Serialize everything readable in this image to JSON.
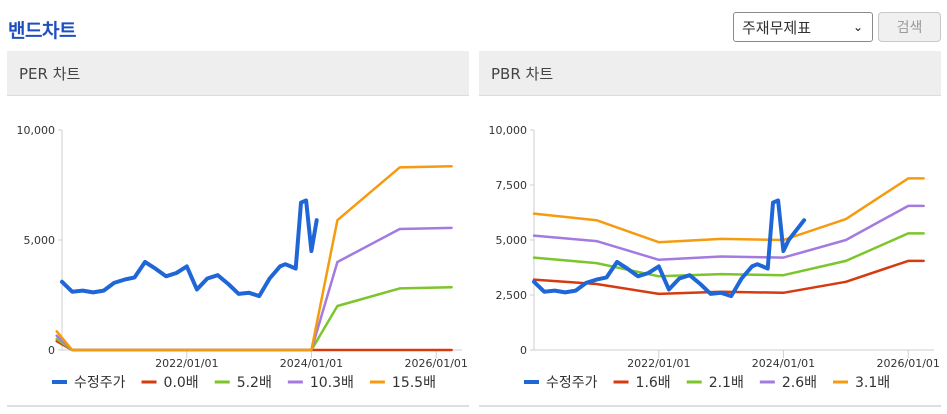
{
  "page": {
    "title": "밴드차트"
  },
  "controls": {
    "select_value": "주재무제표",
    "search_label": "검색"
  },
  "chart_data": [
    {
      "type": "line",
      "title": "PER 차트",
      "ylim": [
        0,
        10000
      ],
      "yticks": [
        0,
        5000,
        10000
      ],
      "ytick_labels": [
        "0",
        "5,000",
        "10,000"
      ],
      "xlim": [
        "2020/01/01",
        "2026/06/01"
      ],
      "xticks": [
        "2022/01/01",
        "2024/01/01",
        "2026/01/01"
      ],
      "series": [
        {
          "name": "수정주가",
          "color": "#1f66d6",
          "width": 4,
          "x": [
            "2020/01/01",
            "2020/03/01",
            "2020/05/01",
            "2020/07/01",
            "2020/09/01",
            "2020/11/01",
            "2021/01/01",
            "2021/03/01",
            "2021/05/01",
            "2021/07/01",
            "2021/09/01",
            "2021/11/01",
            "2022/01/01",
            "2022/03/01",
            "2022/05/01",
            "2022/07/01",
            "2022/09/01",
            "2022/11/01",
            "2023/01/01",
            "2023/03/01",
            "2023/05/01",
            "2023/07/01",
            "2023/08/01",
            "2023/09/01",
            "2023/10/01",
            "2023/11/01",
            "2023/12/01",
            "2024/01/01",
            "2024/02/01"
          ],
          "y": [
            3100,
            2650,
            2700,
            2620,
            2700,
            3050,
            3200,
            3300,
            4000,
            3700,
            3350,
            3500,
            3800,
            2750,
            3250,
            3400,
            3000,
            2550,
            2600,
            2450,
            3250,
            3800,
            3900,
            3800,
            3700,
            6700,
            6800,
            4500,
            5900
          ]
        },
        {
          "name": "0.0배",
          "color": "#d63a0f",
          "width": 2.5,
          "x": [
            "2019/12/01",
            "2020/03/01",
            "2024/01/01",
            "2026/04/01"
          ],
          "y": [
            400,
            0,
            0,
            0
          ]
        },
        {
          "name": "5.2배",
          "color": "#7cc52a",
          "width": 2.5,
          "x": [
            "2019/12/01",
            "2020/03/01",
            "2024/01/01",
            "2024/06/01",
            "2025/06/01",
            "2026/04/01"
          ],
          "y": [
            500,
            0,
            0,
            2000,
            2800,
            2850
          ]
        },
        {
          "name": "10.3배",
          "color": "#a37be0",
          "width": 2.5,
          "x": [
            "2019/12/01",
            "2020/03/01",
            "2024/01/01",
            "2024/06/01",
            "2025/06/01",
            "2026/04/01"
          ],
          "y": [
            650,
            0,
            0,
            4000,
            5500,
            5550
          ]
        },
        {
          "name": "15.5배",
          "color": "#f59b10",
          "width": 2.5,
          "x": [
            "2019/12/01",
            "2020/03/01",
            "2024/01/01",
            "2024/06/01",
            "2025/06/01",
            "2026/04/01"
          ],
          "y": [
            850,
            0,
            0,
            5900,
            8300,
            8350
          ]
        }
      ]
    },
    {
      "type": "line",
      "title": "PBR 차트",
      "ylim": [
        0,
        10000
      ],
      "yticks": [
        0,
        2500,
        5000,
        7500,
        10000
      ],
      "ytick_labels": [
        "0",
        "2,500",
        "5,000",
        "7,500",
        "10,000"
      ],
      "xlim": [
        "2020/01/01",
        "2026/06/01"
      ],
      "xticks": [
        "2022/01/01",
        "2024/01/01",
        "2026/01/01"
      ],
      "series": [
        {
          "name": "수정주가",
          "color": "#1f66d6",
          "width": 4,
          "x": [
            "2020/01/01",
            "2020/03/01",
            "2020/05/01",
            "2020/07/01",
            "2020/09/01",
            "2020/11/01",
            "2021/01/01",
            "2021/03/01",
            "2021/05/01",
            "2021/07/01",
            "2021/09/01",
            "2021/11/01",
            "2022/01/01",
            "2022/03/01",
            "2022/05/01",
            "2022/07/01",
            "2022/09/01",
            "2022/11/01",
            "2023/01/01",
            "2023/03/01",
            "2023/05/01",
            "2023/07/01",
            "2023/08/01",
            "2023/09/01",
            "2023/10/01",
            "2023/11/01",
            "2023/12/01",
            "2024/01/01",
            "2024/02/01",
            "2024/05/01"
          ],
          "y": [
            3100,
            2650,
            2700,
            2620,
            2700,
            3050,
            3200,
            3300,
            4000,
            3700,
            3350,
            3500,
            3800,
            2750,
            3250,
            3400,
            3000,
            2550,
            2600,
            2450,
            3250,
            3800,
            3900,
            3800,
            3700,
            6700,
            6800,
            4500,
            5000,
            5900
          ]
        },
        {
          "name": "1.6배",
          "color": "#d63a0f",
          "width": 2.5,
          "x": [
            "2020/01/01",
            "2021/01/01",
            "2022/01/01",
            "2023/01/01",
            "2024/01/01",
            "2025/01/01",
            "2026/01/01",
            "2026/04/01"
          ],
          "y": [
            3200,
            3000,
            2550,
            2650,
            2600,
            3100,
            4050,
            4050
          ]
        },
        {
          "name": "2.1배",
          "color": "#7cc52a",
          "width": 2.5,
          "x": [
            "2020/01/01",
            "2021/01/01",
            "2022/01/01",
            "2023/01/01",
            "2024/01/01",
            "2025/01/01",
            "2026/01/01",
            "2026/04/01"
          ],
          "y": [
            4200,
            3950,
            3350,
            3450,
            3400,
            4050,
            5300,
            5300
          ]
        },
        {
          "name": "2.6배",
          "color": "#a37be0",
          "width": 2.5,
          "x": [
            "2020/01/01",
            "2021/01/01",
            "2022/01/01",
            "2023/01/01",
            "2024/01/01",
            "2025/01/01",
            "2026/01/01",
            "2026/04/01"
          ],
          "y": [
            5200,
            4950,
            4100,
            4250,
            4200,
            5000,
            6550,
            6550
          ]
        },
        {
          "name": "3.1배",
          "color": "#f59b10",
          "width": 2.5,
          "x": [
            "2020/01/01",
            "2021/01/01",
            "2022/01/01",
            "2023/01/01",
            "2024/01/01",
            "2025/01/01",
            "2026/01/01",
            "2026/04/01"
          ],
          "y": [
            6200,
            5900,
            4900,
            5050,
            5000,
            5950,
            7800,
            7800
          ]
        }
      ]
    }
  ]
}
